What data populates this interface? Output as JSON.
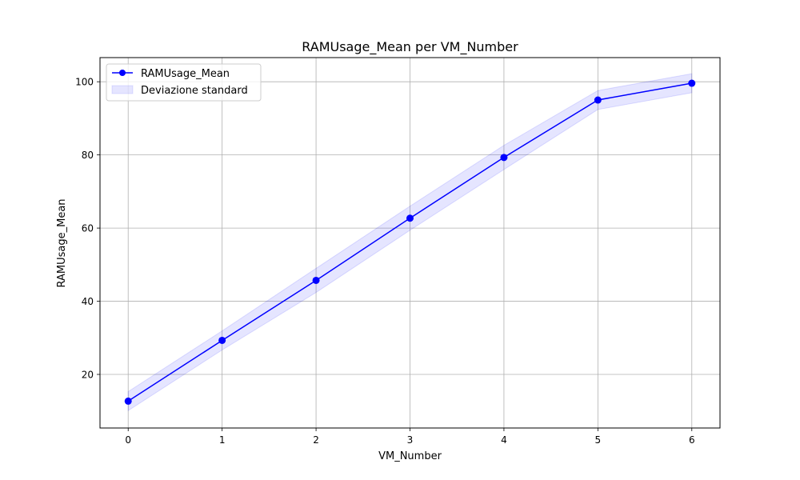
{
  "chart_data": {
    "type": "line",
    "title": "RAMUsage_Mean per VM_Number",
    "xlabel": "VM_Number",
    "ylabel": "RAMUsage_Mean",
    "x": [
      0,
      1,
      2,
      3,
      4,
      5,
      6
    ],
    "series": [
      {
        "name": "RAMUsage_Mean",
        "values": [
          12.7,
          29.3,
          45.7,
          62.7,
          79.3,
          95.0,
          99.6
        ],
        "std": [
          2.6,
          2.6,
          3.3,
          3.3,
          3.3,
          2.6,
          2.6
        ],
        "color": "#0000ff",
        "band_name": "Deviazione standard",
        "band_color": "#0000ff"
      }
    ],
    "xticks": [
      0,
      1,
      2,
      3,
      4,
      5,
      6
    ],
    "yticks": [
      20,
      40,
      60,
      80,
      100
    ],
    "xlim": [
      -0.3,
      6.3
    ],
    "ylim": [
      5.35,
      106.6
    ],
    "grid": true,
    "legend_position": "upper-left"
  }
}
